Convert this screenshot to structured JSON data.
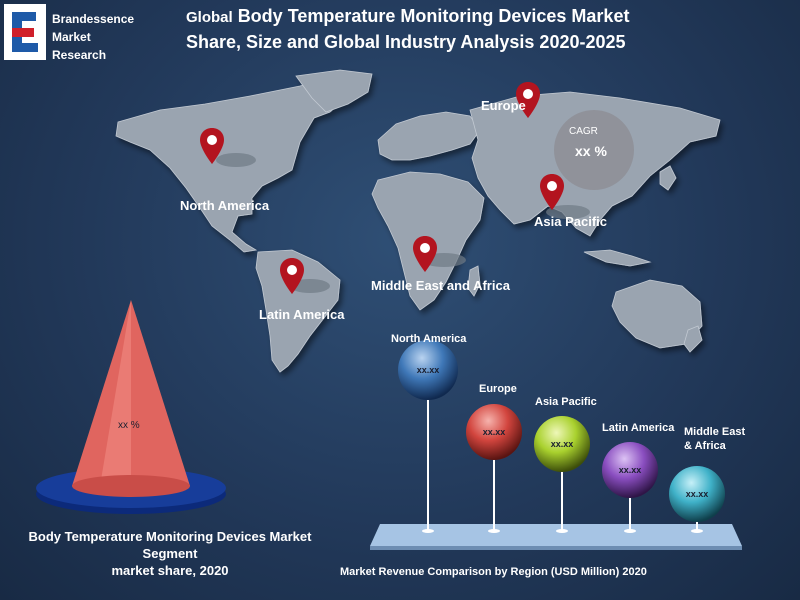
{
  "logo": {
    "line1": "Brandessence",
    "line2": "Market",
    "line3": "Research"
  },
  "title": {
    "prefix": "Global",
    "line1": "Body Temperature Monitoring Devices Market",
    "line2": "Share, Size and Global Industry Analysis 2020-2025"
  },
  "map_labels": {
    "north_america": "North America",
    "europe": "Europe",
    "asia_pacific": "Asia Pacific",
    "middle_east_africa": "Middle East and Africa",
    "latin_america": "Latin America"
  },
  "cagr": {
    "label": "CAGR",
    "value": "xx %"
  },
  "cone": {
    "value": "xx %"
  },
  "left_caption": {
    "line1": "Body Temperature Monitoring Devices  Market",
    "line2": "Segment",
    "line3": "market share, 2020"
  },
  "revenue": {
    "caption": "Market Revenue Comparison by Region (USD Million) 2020",
    "regions": [
      {
        "label": "North America",
        "value": "xx.xx"
      },
      {
        "label": "Europe",
        "value": "xx.xx"
      },
      {
        "label": "Asia Pacific",
        "value": "xx.xx"
      },
      {
        "label": "Latin America",
        "value": "xx.xx"
      },
      {
        "label": "Middle East",
        "label2": "& Africa",
        "value": "xx.xx"
      }
    ]
  },
  "colors": {
    "background": "#22395a",
    "map": "#9aa4b0",
    "pin": "#b3141f",
    "cone": "#e0655f",
    "cone_base": "#0c2a7a",
    "ball_north_america": "#3f78b8",
    "ball_europe": "#d2453e",
    "ball_asia_pacific": "#a9d12e",
    "ball_latin_america": "#8a4ec0",
    "ball_middle_east_africa": "#3fb1c8"
  }
}
